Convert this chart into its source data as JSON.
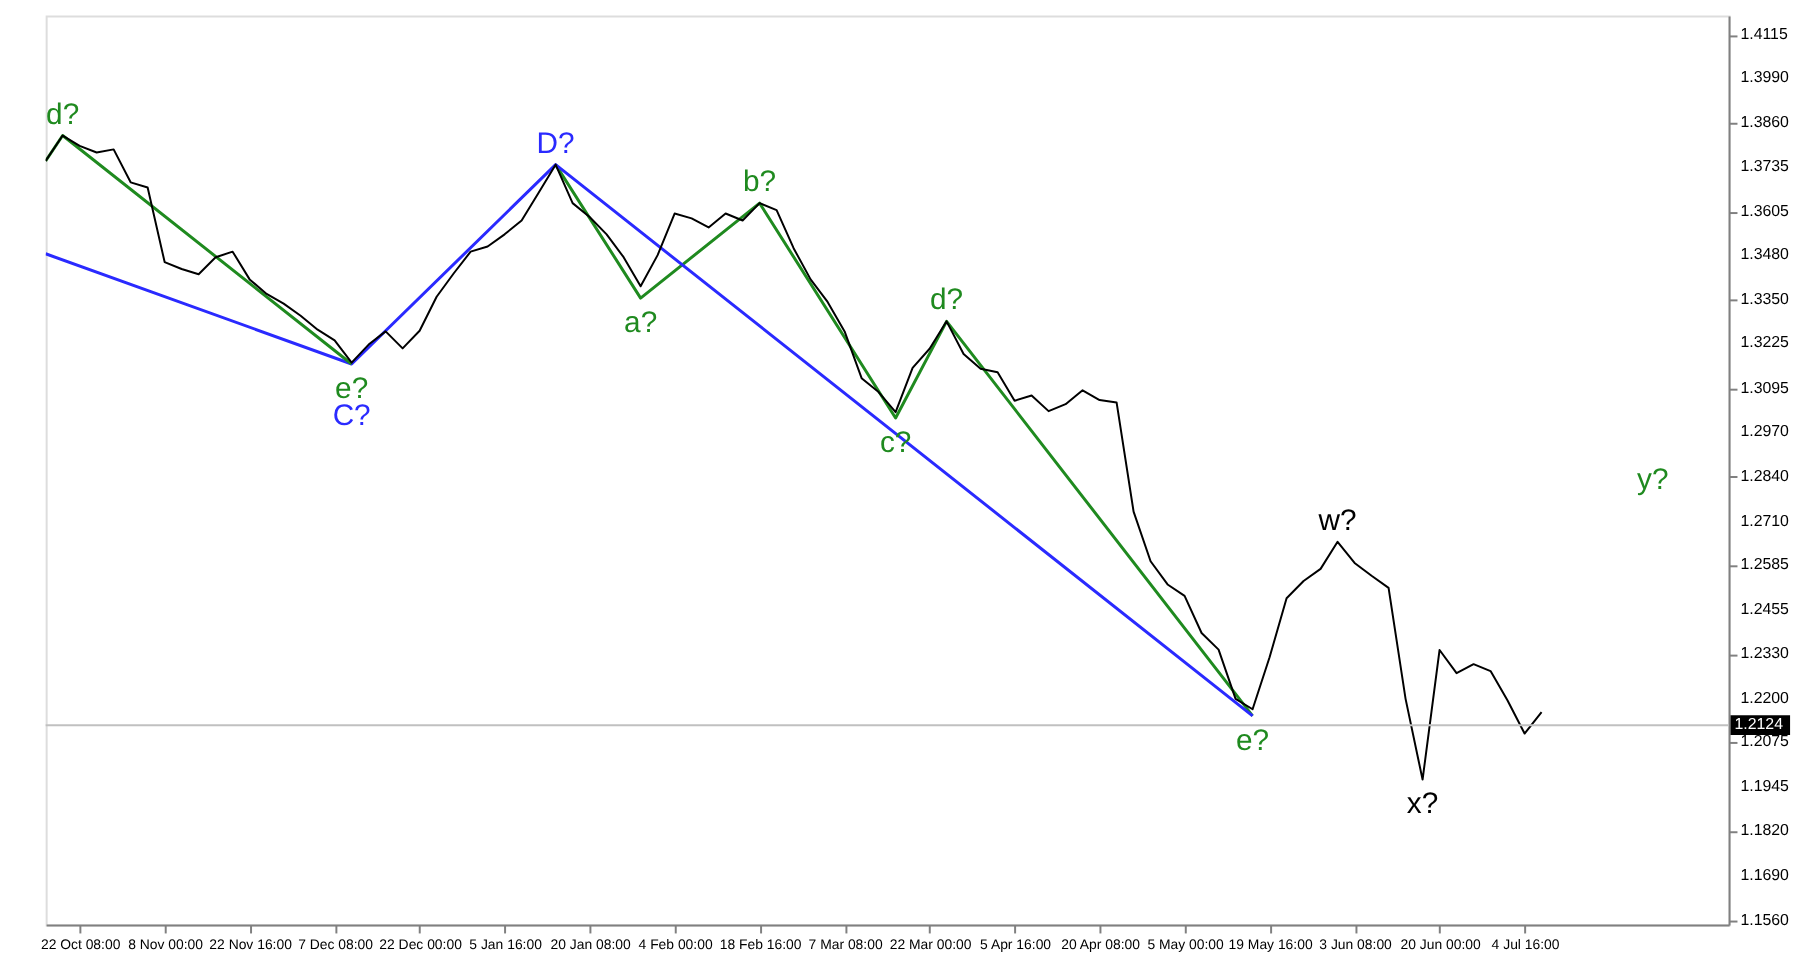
{
  "chart_data": {
    "type": "line",
    "categories": [
      null,
      null,
      "22 Oct 08:00",
      null,
      null,
      null,
      null,
      "8 Nov 00:00",
      null,
      null,
      null,
      null,
      "22 Nov 16:00",
      null,
      null,
      null,
      null,
      "7 Dec 08:00",
      null,
      null,
      null,
      null,
      "22 Dec 00:00",
      null,
      null,
      null,
      null,
      "5 Jan 16:00",
      null,
      null,
      null,
      null,
      "20 Jan 08:00",
      null,
      null,
      null,
      null,
      "4 Feb 00:00",
      null,
      null,
      null,
      null,
      "18 Feb 16:00",
      null,
      null,
      null,
      null,
      "7 Mar 08:00",
      null,
      null,
      null,
      null,
      "22 Mar 00:00",
      null,
      null,
      null,
      null,
      "5 Apr 16:00",
      null,
      null,
      null,
      null,
      "20 Apr 08:00",
      null,
      null,
      null,
      null,
      "5 May 00:00",
      null,
      null,
      null,
      null,
      "19 May 16:00",
      null,
      null,
      null,
      null,
      "3 Jun 08:00",
      null,
      null,
      null,
      null,
      "20 Jun 00:00",
      null,
      null,
      null,
      null,
      "4 Jul 16:00",
      null,
      null,
      null,
      null,
      null,
      null,
      null,
      null,
      null,
      null,
      null,
      null
    ],
    "ylim": [
      1.1549,
      1.4171
    ],
    "yticks": [
      {
        "value": 1.4115,
        "label": "1.4115"
      },
      {
        "value": 1.399,
        "label": "1.3990"
      },
      {
        "value": 1.386,
        "label": "1.3860"
      },
      {
        "value": 1.3735,
        "label": "1.3735"
      },
      {
        "value": 1.3605,
        "label": "1.3605"
      },
      {
        "value": 1.348,
        "label": "1.3480"
      },
      {
        "value": 1.335,
        "label": "1.3350"
      },
      {
        "value": 1.3225,
        "label": "1.3225"
      },
      {
        "value": 1.3095,
        "label": "1.3095"
      },
      {
        "value": 1.297,
        "label": "1.2970"
      },
      {
        "value": 1.284,
        "label": "1.2840"
      },
      {
        "value": 1.271,
        "label": "1.2710"
      },
      {
        "value": 1.2585,
        "label": "1.2585"
      },
      {
        "value": 1.2455,
        "label": "1.2455"
      },
      {
        "value": 1.233,
        "label": "1.2330"
      },
      {
        "value": 1.22,
        "label": "1.2200"
      },
      {
        "value": 1.2075,
        "label": "1.2075"
      },
      {
        "value": 1.1945,
        "label": "1.1945"
      },
      {
        "value": 1.182,
        "label": "1.1820"
      },
      {
        "value": 1.169,
        "label": "1.1690"
      },
      {
        "value": 1.156,
        "label": "1.1560"
      }
    ],
    "series": [
      {
        "color": "#000000",
        "values": [
          1.3752,
          1.3825,
          1.3795,
          1.3776,
          1.3785,
          1.369,
          1.3675,
          1.346,
          1.344,
          1.3425,
          1.3474,
          1.349,
          1.341,
          1.3368,
          1.334,
          1.3305,
          1.3265,
          1.3234,
          1.317,
          1.3222,
          1.326,
          1.3211,
          1.3262,
          1.336,
          1.3427,
          1.349,
          1.3505,
          1.354,
          1.358,
          1.366,
          1.3741,
          1.363,
          1.359,
          1.354,
          1.3474,
          1.339,
          1.348,
          1.36,
          1.3586,
          1.356,
          1.36,
          1.358,
          1.363,
          1.361,
          1.35,
          1.341,
          1.3345,
          1.326,
          1.3125,
          1.3085,
          1.3027,
          1.3155,
          1.321,
          1.3289,
          1.3195,
          1.3152,
          1.3142,
          1.306,
          1.3075,
          1.303,
          1.305,
          1.309,
          1.3062,
          1.3055,
          1.274,
          1.2597,
          1.253,
          1.2497,
          1.239,
          1.2342,
          1.22,
          1.217,
          1.232,
          1.249,
          1.254,
          1.2575,
          1.2653,
          1.2592,
          1.2555,
          1.252,
          1.22,
          1.1967,
          1.2341,
          1.2274,
          1.23,
          1.228,
          1.2195,
          1.21,
          1.2162,
          null,
          null,
          null,
          null,
          null,
          null,
          null,
          null,
          null,
          null,
          null
        ],
        "value_labels": [
          null,
          null,
          null,
          null,
          null,
          null,
          null,
          null,
          null,
          null,
          null,
          null,
          null,
          null,
          null,
          null,
          null,
          null,
          null,
          null,
          null,
          null,
          null,
          null,
          null,
          null,
          null,
          null,
          null,
          null,
          null,
          null,
          null,
          null,
          null,
          null,
          null,
          null,
          null,
          null,
          null,
          null,
          null,
          null,
          null,
          null,
          null,
          null,
          null,
          null,
          null,
          null,
          null,
          null,
          null,
          null,
          null,
          null,
          null,
          null,
          null,
          null,
          null,
          null,
          null,
          null,
          null,
          null,
          null,
          null,
          null,
          null,
          null,
          null,
          null,
          null,
          "w?",
          null,
          null,
          null,
          null,
          "x?",
          null,
          null,
          null,
          null,
          null,
          null,
          null,
          null,
          null,
          null,
          null,
          null,
          null,
          null,
          null,
          null,
          null,
          null
        ]
      },
      {
        "color": "#1f8a1f",
        "values": [
          1.3752,
          1.3825,
          null,
          null,
          null,
          null,
          null,
          null,
          null,
          null,
          null,
          null,
          null,
          null,
          null,
          null,
          null,
          null,
          1.3166,
          null,
          null,
          null,
          null,
          null,
          null,
          null,
          null,
          null,
          null,
          null,
          null,
          null,
          null,
          null,
          null,
          null,
          null,
          null,
          null,
          null,
          null,
          null,
          null,
          null,
          null,
          null,
          null,
          null,
          null,
          null,
          null,
          null,
          null,
          null,
          null,
          null,
          null,
          null,
          null,
          null,
          null,
          null,
          null,
          null,
          null,
          null,
          null,
          null,
          null,
          null,
          null,
          null,
          null,
          null,
          null,
          null,
          null,
          null,
          null,
          null,
          null,
          null,
          null,
          null,
          null,
          null,
          null,
          null,
          null,
          null,
          null,
          null,
          null,
          null,
          null,
          null,
          null,
          null,
          null,
          null
        ],
        "value_labels": [
          null,
          "d?",
          null,
          null,
          null,
          null,
          null,
          null,
          null,
          null,
          null,
          null,
          null,
          null,
          null,
          null,
          null,
          null,
          "e?",
          null,
          null,
          null,
          null,
          null,
          null,
          null,
          null,
          null,
          null,
          null,
          null,
          null,
          null,
          null,
          null,
          null,
          null,
          null,
          null,
          null,
          null,
          null,
          null,
          null,
          null,
          null,
          null,
          null,
          null,
          null,
          null,
          null,
          null,
          null,
          null,
          null,
          null,
          null,
          null,
          null,
          null,
          null,
          null,
          null,
          null,
          null,
          null,
          null,
          null,
          null,
          null,
          null,
          null,
          null,
          null,
          null,
          null,
          null,
          null,
          null,
          null,
          null,
          null,
          null,
          null,
          null,
          null,
          null,
          null,
          null,
          null,
          null,
          null,
          null,
          null,
          null,
          null,
          null,
          null,
          null
        ]
      },
      {
        "color": "#2a2aff",
        "values": [
          1.3484,
          null,
          null,
          null,
          null,
          null,
          null,
          null,
          null,
          null,
          null,
          null,
          null,
          null,
          null,
          null,
          null,
          null,
          1.3166,
          null,
          null,
          null,
          null,
          null,
          null,
          null,
          null,
          null,
          null,
          null,
          1.3741,
          null,
          null,
          null,
          null,
          null,
          null,
          null,
          null,
          null,
          null,
          null,
          null,
          null,
          null,
          null,
          null,
          null,
          null,
          null,
          null,
          null,
          null,
          null,
          null,
          null,
          null,
          null,
          null,
          null,
          null,
          null,
          null,
          null,
          null,
          null,
          null,
          null,
          null,
          null,
          null,
          1.2151,
          null,
          null,
          null,
          null,
          null,
          null,
          null,
          null,
          null,
          null,
          null,
          null,
          null,
          null,
          null,
          null,
          null,
          null,
          null,
          null,
          null,
          null,
          null,
          null,
          null,
          null,
          null,
          null
        ],
        "value_labels": [
          null,
          null,
          null,
          null,
          null,
          null,
          null,
          null,
          null,
          null,
          null,
          null,
          null,
          null,
          null,
          null,
          null,
          null,
          "C?",
          null,
          null,
          null,
          null,
          null,
          null,
          null,
          null,
          null,
          null,
          null,
          "D?",
          null,
          null,
          null,
          null,
          null,
          null,
          null,
          null,
          null,
          null,
          null,
          null,
          null,
          null,
          null,
          null,
          null,
          null,
          null,
          null,
          null,
          null,
          null,
          null,
          null,
          null,
          null,
          null,
          null,
          null,
          null,
          null,
          null,
          null,
          null,
          null,
          null,
          null,
          null,
          null,
          null,
          null,
          null,
          null,
          null,
          null,
          null,
          null,
          null,
          null,
          null,
          null,
          null,
          null,
          null,
          null,
          null,
          null,
          null,
          null,
          null,
          null,
          null,
          null,
          null,
          null,
          null,
          null,
          null
        ]
      },
      {
        "color": "#1f8a1f",
        "values": [
          null,
          null,
          null,
          null,
          null,
          null,
          null,
          null,
          null,
          null,
          null,
          null,
          null,
          null,
          null,
          null,
          null,
          null,
          null,
          null,
          null,
          null,
          null,
          null,
          null,
          null,
          null,
          null,
          null,
          null,
          1.3741,
          null,
          null,
          null,
          null,
          1.3356,
          null,
          null,
          null,
          null,
          null,
          null,
          1.363,
          null,
          null,
          null,
          null,
          null,
          null,
          null,
          1.301,
          null,
          null,
          1.3289,
          null,
          null,
          null,
          null,
          null,
          null,
          null,
          null,
          null,
          null,
          null,
          null,
          null,
          null,
          null,
          null,
          null,
          1.2151,
          null,
          null,
          null,
          null,
          null,
          null,
          null,
          null,
          null,
          null,
          null,
          null,
          null,
          null,
          null,
          null,
          null,
          null,
          null,
          null,
          null,
          null,
          null,
          null,
          null,
          null,
          null,
          null
        ],
        "value_labels": [
          null,
          null,
          null,
          null,
          null,
          null,
          null,
          null,
          null,
          null,
          null,
          null,
          null,
          null,
          null,
          null,
          null,
          null,
          null,
          null,
          null,
          null,
          null,
          null,
          null,
          null,
          null,
          null,
          null,
          null,
          null,
          null,
          null,
          null,
          null,
          "a?",
          null,
          null,
          null,
          null,
          null,
          null,
          "b?",
          null,
          null,
          null,
          null,
          null,
          null,
          null,
          "c?",
          null,
          null,
          "d?",
          null,
          null,
          null,
          null,
          null,
          null,
          null,
          null,
          null,
          null,
          null,
          null,
          null,
          null,
          null,
          null,
          null,
          "e?",
          null,
          null,
          null,
          null,
          null,
          null,
          null,
          null,
          null,
          null,
          null,
          null,
          null,
          null,
          null,
          null,
          null,
          null,
          null,
          null,
          null,
          null,
          null,
          null,
          null,
          null,
          null,
          null
        ]
      }
    ],
    "annotations": [
      "y?"
    ],
    "ref_lines": [
      {
        "axis": "y",
        "value": 1.2124,
        "label": "1.2124",
        "color": "#c0c0c0"
      }
    ]
  }
}
